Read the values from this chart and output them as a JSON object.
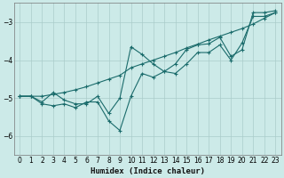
{
  "xlabel": "Humidex (Indice chaleur)",
  "bg_color": "#cceae8",
  "grid_color": "#aaccca",
  "line_color": "#1a6b6b",
  "xlim": [
    -0.5,
    23.5
  ],
  "ylim": [
    -6.5,
    -2.5
  ],
  "yticks": [
    -6,
    -5,
    -4,
    -3
  ],
  "xticks": [
    0,
    1,
    2,
    3,
    4,
    5,
    6,
    7,
    8,
    9,
    10,
    11,
    12,
    13,
    14,
    15,
    16,
    17,
    18,
    19,
    20,
    21,
    22,
    23
  ],
  "series": [
    {
      "x": [
        0,
        1,
        2,
        3,
        4,
        5,
        6,
        7,
        8,
        9,
        10,
        11,
        12,
        13,
        14,
        15,
        16,
        17,
        18,
        19,
        20,
        21,
        22,
        23
      ],
      "y": [
        -4.95,
        -4.95,
        -4.95,
        -4.9,
        -4.85,
        -4.78,
        -4.7,
        -4.6,
        -4.5,
        -4.4,
        -4.2,
        -4.1,
        -4.0,
        -3.9,
        -3.8,
        -3.68,
        -3.58,
        -3.47,
        -3.37,
        -3.27,
        -3.17,
        -3.05,
        -2.9,
        -2.75
      ]
    },
    {
      "x": [
        0,
        1,
        2,
        3,
        4,
        5,
        6,
        7,
        8,
        9,
        10,
        11,
        12,
        13,
        14,
        15,
        16,
        17,
        18,
        19,
        20,
        21,
        22,
        23
      ],
      "y": [
        -4.95,
        -4.95,
        -5.15,
        -5.2,
        -5.15,
        -5.25,
        -5.1,
        -5.1,
        -5.6,
        -5.85,
        -4.95,
        -4.35,
        -4.45,
        -4.3,
        -4.35,
        -4.1,
        -3.8,
        -3.8,
        -3.6,
        -4.0,
        -3.55,
        -2.85,
        -2.85,
        -2.75
      ]
    },
    {
      "x": [
        0,
        1,
        2,
        3,
        4,
        5,
        6,
        7,
        8,
        9,
        10,
        11,
        12,
        13,
        14,
        15,
        16,
        17,
        18,
        19,
        20,
        21,
        22,
        23
      ],
      "y": [
        -4.95,
        -4.95,
        -5.1,
        -4.85,
        -5.05,
        -5.15,
        -5.15,
        -4.95,
        -5.4,
        -5.0,
        -3.65,
        -3.85,
        -4.1,
        -4.3,
        -4.1,
        -3.72,
        -3.6,
        -3.57,
        -3.4,
        -3.9,
        -3.73,
        -2.75,
        -2.75,
        -2.7
      ]
    }
  ]
}
